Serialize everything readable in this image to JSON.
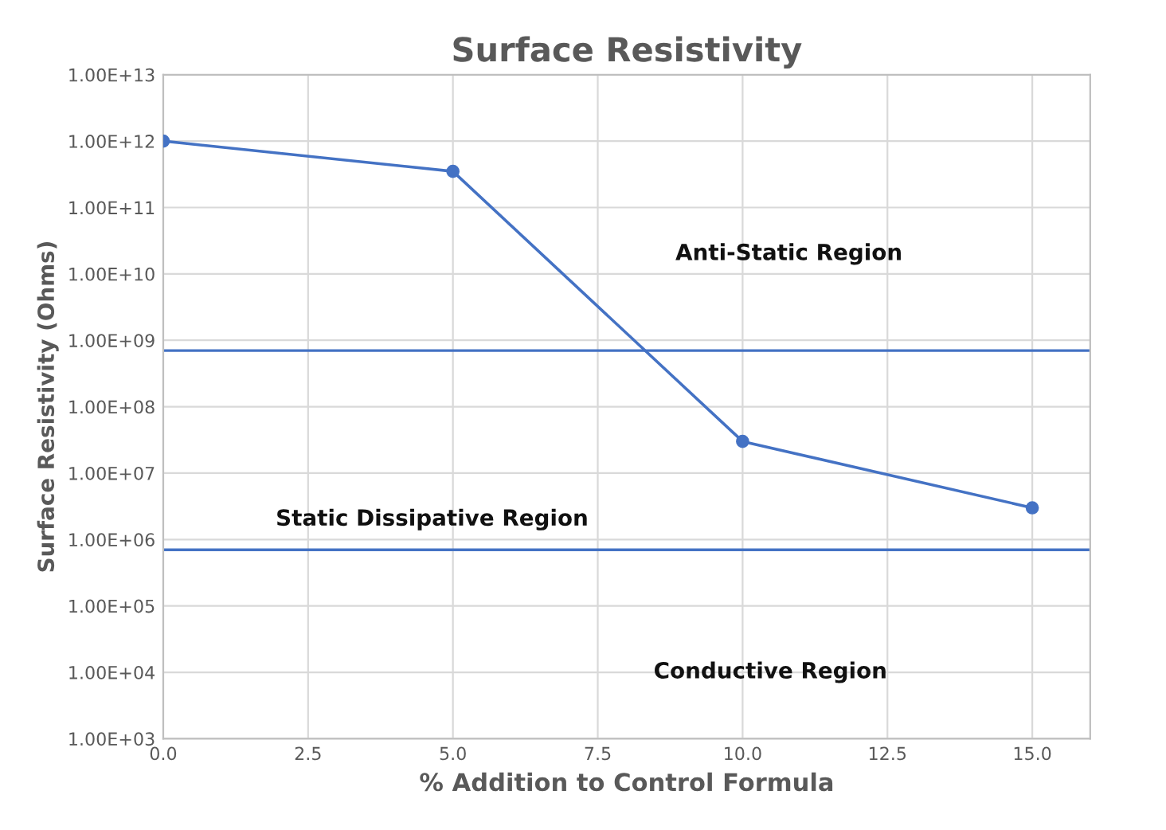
{
  "chart_data": {
    "type": "line",
    "title": "Surface Resistivity",
    "xlabel": "% Addition to Control Formula",
    "ylabel": "Surface Resistivity (Ohms)",
    "x": [
      0,
      5,
      10,
      15
    ],
    "series": [
      {
        "color": "#4472c4",
        "values": [
          1000000000000.0,
          350000000000.0,
          30000000.0,
          3000000.0
        ]
      }
    ],
    "marker": "circle",
    "log": "y",
    "xlim": [
      0,
      16
    ],
    "xticks": [
      {
        "value": 0,
        "label": "0.0"
      },
      {
        "value": 2.5,
        "label": "2.5"
      },
      {
        "value": 5,
        "label": "5.0"
      },
      {
        "value": 7.5,
        "label": "7.5"
      },
      {
        "value": 10,
        "label": "10.0"
      },
      {
        "value": 12.5,
        "label": "12.5"
      },
      {
        "value": 15,
        "label": "15.0"
      }
    ],
    "ylim": [
      1000.0,
      10000000000000.0
    ],
    "yticks": [
      {
        "value": 1000.0,
        "label": "1.00E+03"
      },
      {
        "value": 10000.0,
        "label": "1.00E+04"
      },
      {
        "value": 100000.0,
        "label": "1.00E+05"
      },
      {
        "value": 1000000.0,
        "label": "1.00E+06"
      },
      {
        "value": 10000000.0,
        "label": "1.00E+07"
      },
      {
        "value": 100000000.0,
        "label": "1.00E+08"
      },
      {
        "value": 1000000000.0,
        "label": "1.00E+09"
      },
      {
        "value": 10000000000.0,
        "label": "1.00E+10"
      },
      {
        "value": 100000000000.0,
        "label": "1.00E+11"
      },
      {
        "value": 1000000000000.0,
        "label": "1.00E+12"
      },
      {
        "value": 10000000000000.0,
        "label": "1.00E+13"
      }
    ],
    "grid": true,
    "ref_lines": [
      {
        "axis": "y",
        "value": 700000000.0,
        "color": "#4472c4"
      },
      {
        "axis": "y",
        "value": 700000.0,
        "color": "#4472c4"
      }
    ],
    "annotations": [
      "Anti-Static Region",
      "Static Dissipative Region",
      "Conductive Region"
    ]
  }
}
